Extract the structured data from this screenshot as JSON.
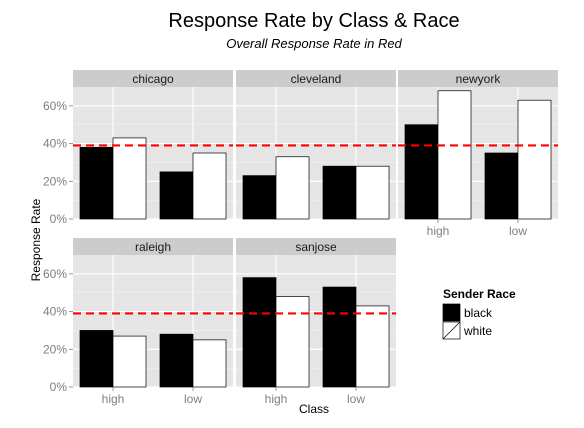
{
  "chart_data": {
    "type": "bar",
    "title": "Response Rate by Class & Race",
    "subtitle": "Overall Response Rate in Red",
    "xlabel": "Class",
    "ylabel": "Response Rate",
    "ylim": [
      0,
      0.7
    ],
    "y_ticks": [
      0,
      0.2,
      0.4,
      0.6
    ],
    "y_tick_labels": [
      "0%",
      "20%",
      "40%",
      "60%"
    ],
    "categories": [
      "high",
      "low"
    ],
    "reference_line": {
      "value": 0.39,
      "color": "#ff0000",
      "style": "dashed"
    },
    "legend": {
      "title": "Sender Race",
      "position": "right",
      "entries": [
        {
          "label": "black",
          "fill": "#000000"
        },
        {
          "label": "white",
          "fill": "#ffffff"
        }
      ]
    },
    "colors": {
      "panel_bg": "#e5e5e5",
      "strip_bg": "#cccccc",
      "grid_major": "#ffffff",
      "grid_minor": "#f2f2f2"
    },
    "facets": [
      {
        "name": "chicago",
        "black": [
          0.38,
          0.25
        ],
        "white": [
          0.43,
          0.35
        ]
      },
      {
        "name": "cleveland",
        "black": [
          0.23,
          0.28
        ],
        "white": [
          0.33,
          0.28
        ]
      },
      {
        "name": "newyork",
        "black": [
          0.5,
          0.35
        ],
        "white": [
          0.68,
          0.63
        ]
      },
      {
        "name": "raleigh",
        "black": [
          0.3,
          0.28
        ],
        "white": [
          0.27,
          0.25
        ]
      },
      {
        "name": "sanjose",
        "black": [
          0.58,
          0.53
        ],
        "white": [
          0.48,
          0.43
        ]
      }
    ]
  }
}
